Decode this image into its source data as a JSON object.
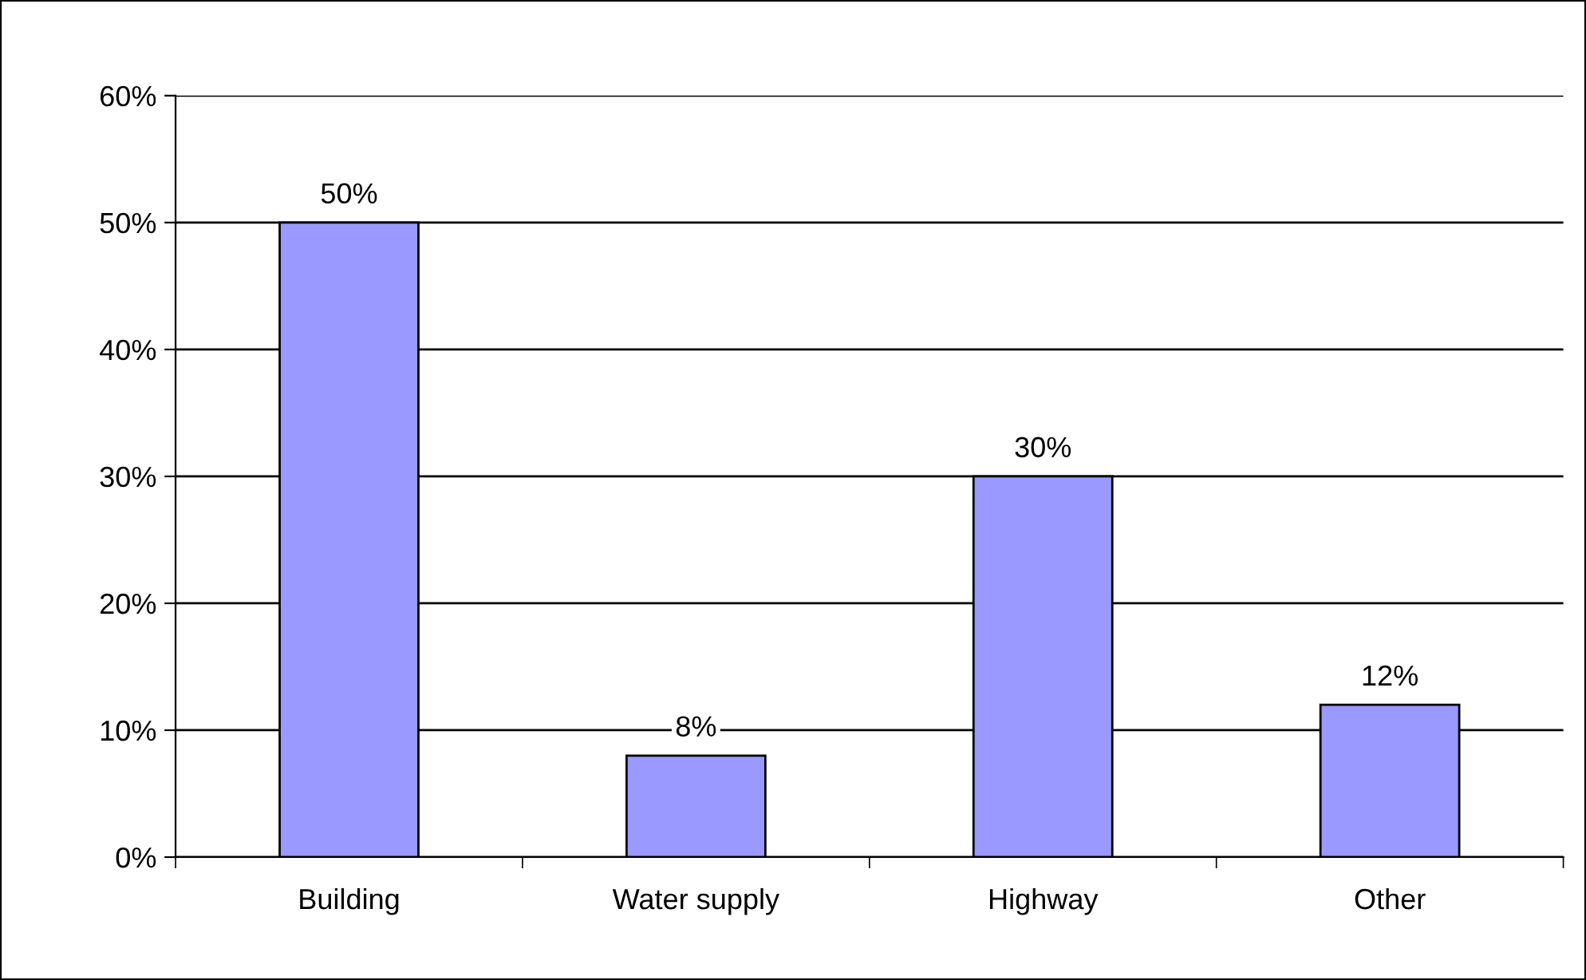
{
  "chart_data": {
    "type": "bar",
    "categories": [
      "Building",
      "Water supply",
      "Highway",
      "Other"
    ],
    "values": [
      50,
      8,
      30,
      12
    ],
    "color": "#9999ff",
    "value_labels": [
      "50%",
      "8%",
      "30%",
      "12%"
    ],
    "ylim": [
      0,
      60
    ],
    "yticks": [
      {
        "value": 0,
        "label": "0%"
      },
      {
        "value": 10,
        "label": "10%"
      },
      {
        "value": 20,
        "label": "20%"
      },
      {
        "value": 30,
        "label": "30%"
      },
      {
        "value": 40,
        "label": "40%"
      },
      {
        "value": 50,
        "label": "50%"
      },
      {
        "value": 60,
        "label": "60%"
      }
    ],
    "grid": "y",
    "legend": false
  }
}
